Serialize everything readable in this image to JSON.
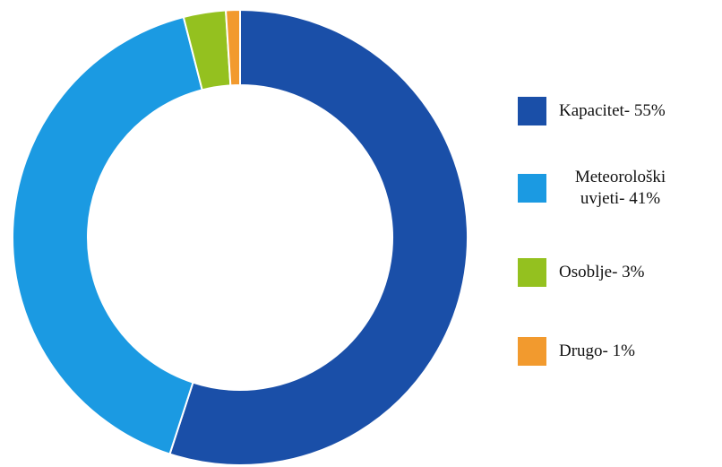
{
  "chart_data": {
    "type": "pie",
    "variant": "donut",
    "title": "",
    "categories": [
      "Kapacitet",
      "Meteorološki uvjeti",
      "Osoblje",
      "Drugo"
    ],
    "values": [
      55,
      41,
      3,
      1
    ],
    "unit": "%",
    "colors": [
      "#1a4fa8",
      "#1b9ae2",
      "#94c11f",
      "#f29a2e"
    ],
    "legend_placement": "right",
    "legend": [
      {
        "label": "Kapacitet- 55%",
        "color": "#1a4fa8"
      },
      {
        "label": "Meteorološki uvjeti- 41%",
        "color": "#1b9ae2"
      },
      {
        "label": "Osoblje- 3%",
        "color": "#94c11f"
      },
      {
        "label": "Drugo- 1%",
        "color": "#f29a2e"
      }
    ]
  }
}
